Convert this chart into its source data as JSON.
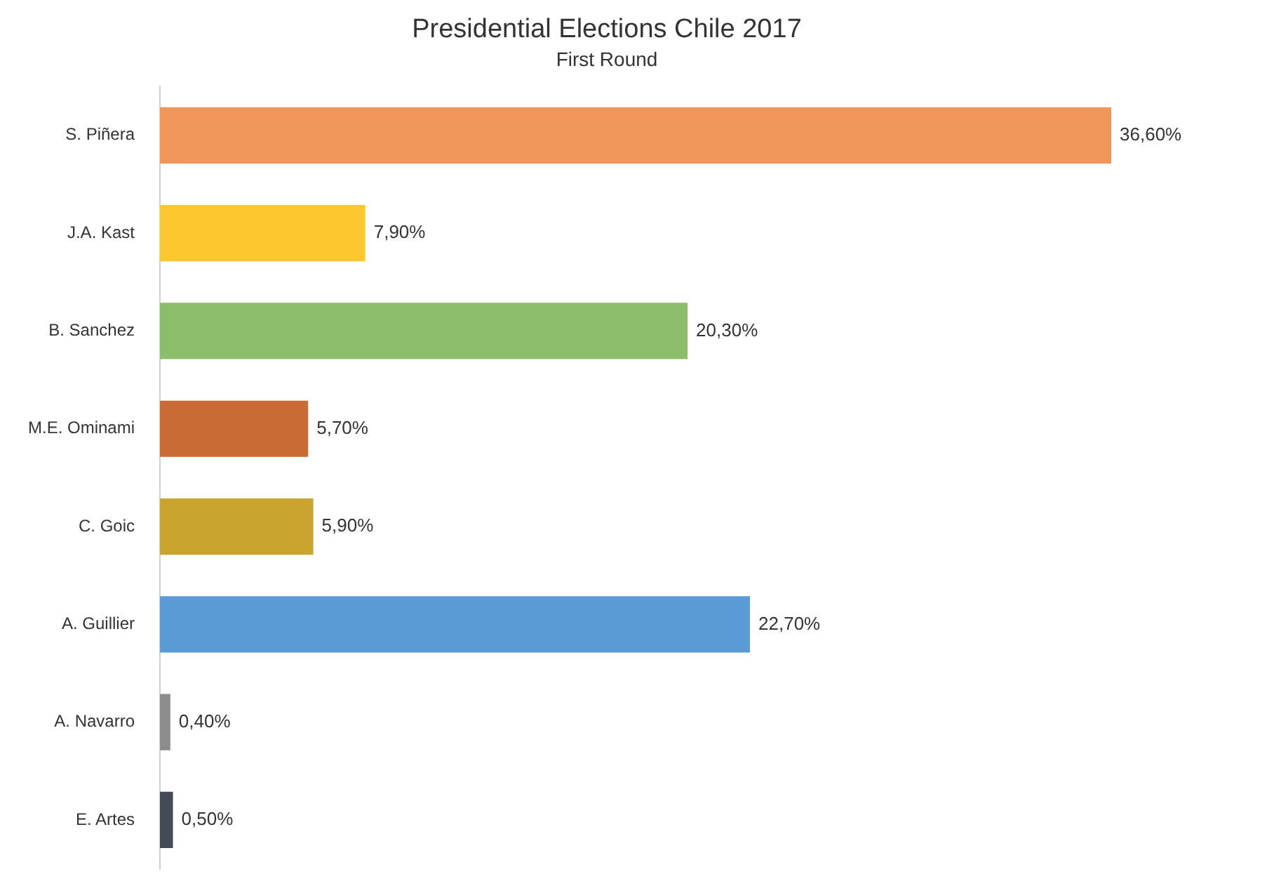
{
  "chart_data": {
    "type": "bar",
    "orientation": "horizontal",
    "title": "Presidential Elections Chile 2017",
    "subtitle": "First Round",
    "categories": [
      "S. Piñera",
      "J.A. Kast",
      "B. Sanchez",
      "M.E. Ominami",
      "C. Goic",
      "A. Guillier",
      "A. Navarro",
      "E. Artes"
    ],
    "values": [
      36.6,
      7.9,
      20.3,
      5.7,
      5.9,
      22.7,
      0.4,
      0.5
    ],
    "colors": [
      "#f0965a",
      "#fdc82f",
      "#8cbd6b",
      "#c96b35",
      "#c9a52f",
      "#5b9bd5",
      "#8c8c8c",
      "#444b55"
    ],
    "value_labels": [
      "36,60%",
      "7,90%",
      "20,30%",
      "5,70%",
      "5,90%",
      "22,70%",
      "0,40%",
      "0,50%"
    ],
    "tick_labels": "y",
    "legend": false
  }
}
